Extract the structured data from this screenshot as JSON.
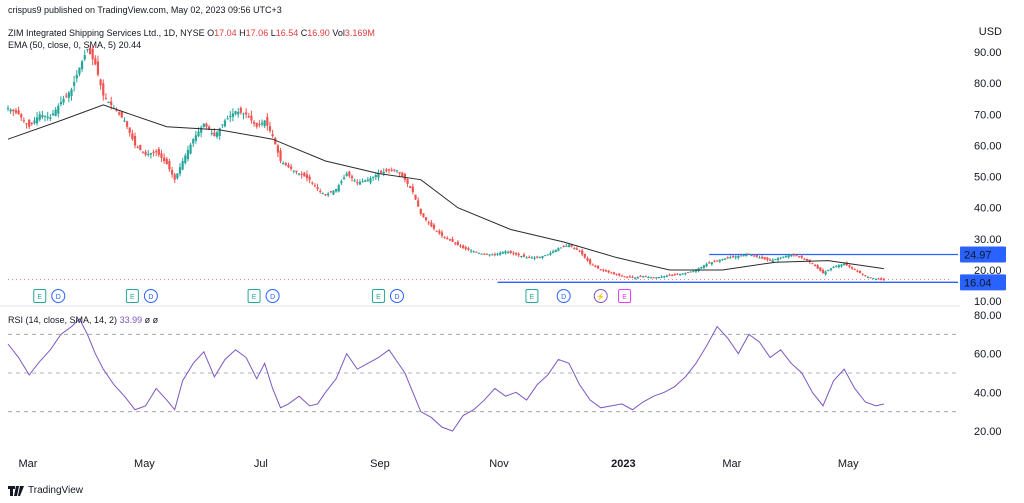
{
  "header": {
    "published": "crispus9 published on TradingView.com, May 02, 2023 09:56 UTC+3",
    "symbol": "ZIM Integrated Shipping Services Ltd., 1D, NYSE",
    "open_label": "O",
    "open": "17.04",
    "high_label": "H",
    "high": "17.06",
    "low_label": "L",
    "low": "16.54",
    "close_label": "C",
    "close": "16.90",
    "vol_label": "Vol",
    "vol": "3.169M",
    "ema_label": "EMA (50, close, 0, SMA, 5)",
    "ema_value": "20.44",
    "rsi_label": "RSI (14, close, SMA, 14, 2)",
    "rsi_value": "33.99",
    "rsi_extra": "ø ø",
    "currency": "USD"
  },
  "footer": {
    "brand": "TradingView"
  },
  "colors": {
    "up": "#26a69a",
    "down": "#ef5350",
    "ema": "#2b2b2b",
    "rsi": "#7e57c2",
    "hline": "#2962ff",
    "earnings": "#26a69a",
    "dividend": "#2962ff"
  },
  "chart_data": [
    {
      "type": "candlestick",
      "x_labels": [
        "Mar",
        "May",
        "Jul",
        "Sep",
        "Nov",
        "2023",
        "Mar",
        "May"
      ],
      "y_ticks": [
        "90.00",
        "80.00",
        "70.00",
        "60.00",
        "50.00",
        "40.00",
        "30.00",
        "20.00",
        "10.00"
      ],
      "ylim": [
        10,
        96
      ],
      "price_path": [
        [
          0,
          72
        ],
        [
          4,
          70
        ],
        [
          8,
          66
        ],
        [
          12,
          70
        ],
        [
          16,
          69
        ],
        [
          20,
          74
        ],
        [
          24,
          78
        ],
        [
          27,
          85
        ],
        [
          30,
          91
        ],
        [
          33,
          86
        ],
        [
          36,
          76
        ],
        [
          40,
          72
        ],
        [
          44,
          68
        ],
        [
          48,
          60
        ],
        [
          52,
          57
        ],
        [
          56,
          58
        ],
        [
          60,
          54
        ],
        [
          63,
          49
        ],
        [
          66,
          55
        ],
        [
          70,
          62
        ],
        [
          74,
          67
        ],
        [
          78,
          63
        ],
        [
          82,
          68
        ],
        [
          86,
          71
        ],
        [
          90,
          70
        ],
        [
          94,
          66
        ],
        [
          97,
          68
        ],
        [
          100,
          63
        ],
        [
          103,
          55
        ],
        [
          106,
          53
        ],
        [
          110,
          51
        ],
        [
          114,
          49
        ],
        [
          117,
          46
        ],
        [
          120,
          44
        ],
        [
          124,
          46
        ],
        [
          128,
          51
        ],
        [
          132,
          48
        ],
        [
          136,
          49
        ],
        [
          140,
          51
        ],
        [
          144,
          52
        ],
        [
          147,
          52
        ],
        [
          150,
          49
        ],
        [
          153,
          45
        ],
        [
          156,
          38
        ],
        [
          160,
          34
        ],
        [
          164,
          31
        ],
        [
          168,
          29
        ],
        [
          172,
          27
        ],
        [
          176,
          26
        ],
        [
          180,
          25
        ],
        [
          184,
          25
        ],
        [
          188,
          26
        ],
        [
          192,
          25
        ],
        [
          196,
          24
        ],
        [
          200,
          24
        ],
        [
          204,
          25
        ],
        [
          208,
          27
        ],
        [
          212,
          28
        ],
        [
          216,
          26
        ],
        [
          220,
          22
        ],
        [
          224,
          20
        ],
        [
          228,
          19
        ],
        [
          232,
          18
        ],
        [
          236,
          17.5
        ],
        [
          240,
          18
        ],
        [
          244,
          17.5
        ],
        [
          248,
          18
        ],
        [
          252,
          18.5
        ],
        [
          256,
          19
        ],
        [
          260,
          20
        ],
        [
          264,
          22
        ],
        [
          268,
          23
        ],
        [
          272,
          24
        ],
        [
          276,
          24.5
        ],
        [
          280,
          25
        ],
        [
          284,
          24
        ],
        [
          288,
          23
        ],
        [
          292,
          24
        ],
        [
          296,
          25
        ],
        [
          300,
          24
        ],
        [
          304,
          22
        ],
        [
          308,
          19
        ],
        [
          312,
          21
        ],
        [
          316,
          22
        ],
        [
          320,
          20
        ],
        [
          324,
          18
        ],
        [
          328,
          17.2
        ],
        [
          331,
          16.9
        ]
      ],
      "ema_50": [
        [
          0,
          62
        ],
        [
          20,
          68
        ],
        [
          36,
          73
        ],
        [
          60,
          66
        ],
        [
          80,
          65
        ],
        [
          100,
          62
        ],
        [
          120,
          55
        ],
        [
          140,
          51
        ],
        [
          156,
          49
        ],
        [
          170,
          40
        ],
        [
          190,
          33
        ],
        [
          210,
          29
        ],
        [
          230,
          24
        ],
        [
          250,
          20
        ],
        [
          270,
          20
        ],
        [
          290,
          22.5
        ],
        [
          310,
          23
        ],
        [
          331,
          20.44
        ]
      ],
      "last_price": 16.9,
      "hlines": [
        24.97,
        16.04
      ],
      "hline_labels": [
        "24.97",
        "16.04"
      ],
      "event_badges": [
        {
          "x": 12,
          "kind": "E"
        },
        {
          "x": 19,
          "kind": "D"
        },
        {
          "x": 47,
          "kind": "E"
        },
        {
          "x": 54,
          "kind": "D"
        },
        {
          "x": 93,
          "kind": "E"
        },
        {
          "x": 100,
          "kind": "D"
        },
        {
          "x": 140,
          "kind": "E"
        },
        {
          "x": 147,
          "kind": "D"
        },
        {
          "x": 198,
          "kind": "E"
        },
        {
          "x": 210,
          "kind": "D"
        },
        {
          "x": 224,
          "kind": "bolt"
        },
        {
          "x": 233,
          "kind": "E-future"
        }
      ]
    },
    {
      "type": "line",
      "name": "RSI",
      "y_ticks": [
        "80.00",
        "60.00",
        "40.00",
        "20.00"
      ],
      "ylim": [
        14,
        82
      ],
      "guide_levels": [
        70,
        50,
        30
      ],
      "rsi": [
        [
          0,
          65
        ],
        [
          4,
          58
        ],
        [
          8,
          49
        ],
        [
          12,
          56
        ],
        [
          16,
          62
        ],
        [
          20,
          70
        ],
        [
          24,
          74
        ],
        [
          27,
          78
        ],
        [
          30,
          70
        ],
        [
          33,
          60
        ],
        [
          36,
          52
        ],
        [
          40,
          44
        ],
        [
          44,
          38
        ],
        [
          48,
          31
        ],
        [
          52,
          33
        ],
        [
          56,
          42
        ],
        [
          60,
          36
        ],
        [
          63,
          31
        ],
        [
          66,
          46
        ],
        [
          70,
          55
        ],
        [
          74,
          61
        ],
        [
          78,
          48
        ],
        [
          82,
          57
        ],
        [
          86,
          62
        ],
        [
          90,
          58
        ],
        [
          94,
          47
        ],
        [
          97,
          55
        ],
        [
          100,
          42
        ],
        [
          103,
          32
        ],
        [
          106,
          34
        ],
        [
          110,
          38
        ],
        [
          114,
          33
        ],
        [
          117,
          34
        ],
        [
          120,
          40
        ],
        [
          124,
          47
        ],
        [
          128,
          60
        ],
        [
          132,
          52
        ],
        [
          136,
          55
        ],
        [
          140,
          58
        ],
        [
          144,
          62
        ],
        [
          147,
          56
        ],
        [
          150,
          50
        ],
        [
          153,
          40
        ],
        [
          156,
          30
        ],
        [
          160,
          27
        ],
        [
          164,
          22
        ],
        [
          168,
          20
        ],
        [
          172,
          28
        ],
        [
          176,
          31
        ],
        [
          180,
          36
        ],
        [
          184,
          42
        ],
        [
          188,
          38
        ],
        [
          192,
          40
        ],
        [
          196,
          36
        ],
        [
          200,
          44
        ],
        [
          204,
          49
        ],
        [
          208,
          57
        ],
        [
          212,
          55
        ],
        [
          216,
          44
        ],
        [
          220,
          36
        ],
        [
          224,
          32
        ],
        [
          228,
          33
        ],
        [
          232,
          34
        ],
        [
          236,
          31
        ],
        [
          240,
          35
        ],
        [
          244,
          38
        ],
        [
          248,
          40
        ],
        [
          252,
          43
        ],
        [
          256,
          48
        ],
        [
          260,
          55
        ],
        [
          264,
          64
        ],
        [
          268,
          74
        ],
        [
          272,
          68
        ],
        [
          276,
          60
        ],
        [
          280,
          70
        ],
        [
          284,
          66
        ],
        [
          288,
          58
        ],
        [
          292,
          62
        ],
        [
          296,
          55
        ],
        [
          300,
          50
        ],
        [
          304,
          40
        ],
        [
          308,
          33
        ],
        [
          312,
          46
        ],
        [
          316,
          52
        ],
        [
          320,
          42
        ],
        [
          324,
          35
        ],
        [
          328,
          33
        ],
        [
          331,
          33.99
        ]
      ]
    }
  ]
}
